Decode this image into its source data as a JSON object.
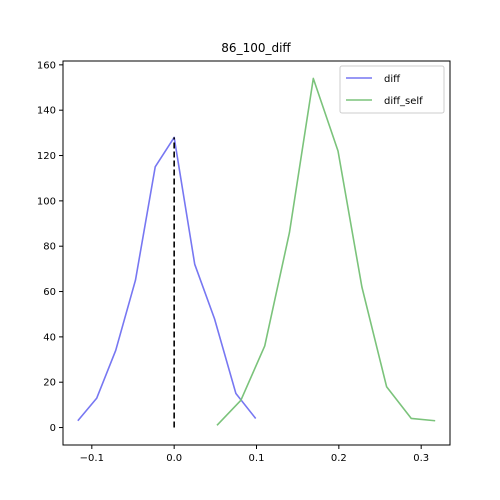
{
  "chart_data": {
    "type": "line",
    "title": "86_100_diff",
    "xlabel": "",
    "ylabel": "",
    "xlim": [
      -0.135,
      0.335
    ],
    "ylim": [
      -7.7,
      161.7
    ],
    "xticks": [
      -0.1,
      0.0,
      0.1,
      0.2,
      0.3
    ],
    "xtick_labels": [
      "−0.1",
      "0.0",
      "0.1",
      "0.2",
      "0.3"
    ],
    "yticks": [
      0,
      20,
      40,
      60,
      80,
      100,
      120,
      140,
      160
    ],
    "ytick_labels": [
      "0",
      "20",
      "40",
      "60",
      "80",
      "100",
      "120",
      "140",
      "160"
    ],
    "grid": false,
    "legend_position": "upper right",
    "series": [
      {
        "name": "diff",
        "color": "#7777f2",
        "x": [
          -0.117,
          -0.094,
          -0.071,
          -0.047,
          -0.023,
          0.0,
          0.025,
          0.049,
          0.075,
          0.099
        ],
        "y": [
          3,
          13,
          34,
          65,
          115,
          128,
          72,
          48,
          15,
          4
        ]
      },
      {
        "name": "diff_self",
        "color": "#7bc37b",
        "x": [
          0.052,
          0.081,
          0.11,
          0.14,
          0.169,
          0.199,
          0.228,
          0.258,
          0.288,
          0.317
        ],
        "y": [
          1,
          12,
          36,
          86,
          154,
          122,
          62,
          18,
          4,
          3
        ]
      }
    ],
    "reference_line": {
      "x": 0.0,
      "y_from": 0,
      "y_to": 128,
      "style": "dashed",
      "color": "#000000"
    }
  }
}
